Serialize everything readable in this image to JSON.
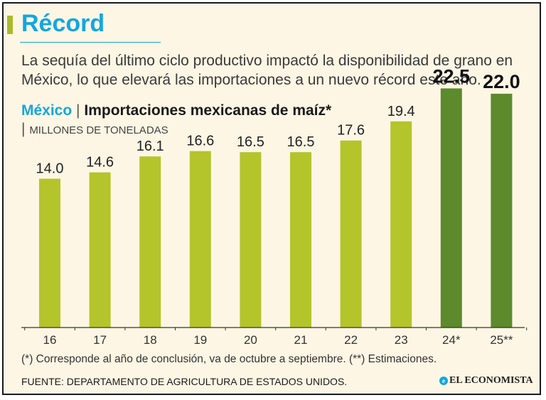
{
  "header": {
    "title": "Récord",
    "subtitle": "La sequía del último ciclo productivo impactó la disponibilidad de grano en México, lo que elevará las importaciones a un nuevo récord este año."
  },
  "chart_header": {
    "country": "México",
    "separator": "|",
    "title": "Importaciones mexicanas de maíz*",
    "unit": "MILLONES DE TONELADAS"
  },
  "chart_data": {
    "type": "bar",
    "title": "Importaciones mexicanas de maíz*",
    "ylabel": "MILLONES DE TONELADAS",
    "xlabel": "",
    "categories": [
      "16",
      "17",
      "18",
      "19",
      "20",
      "21",
      "22",
      "23",
      "24*",
      "25**"
    ],
    "values": [
      14.0,
      14.6,
      16.1,
      16.6,
      16.5,
      16.5,
      17.6,
      19.4,
      22.5,
      22.0
    ],
    "value_labels": [
      "14.0",
      "14.6",
      "16.1",
      "16.6",
      "16.5",
      "16.5",
      "17.6",
      "19.4",
      "22.5",
      "22.0"
    ],
    "highlight": [
      false,
      false,
      false,
      false,
      false,
      false,
      false,
      false,
      true,
      true
    ],
    "ylim": [
      0,
      24
    ],
    "grid": false,
    "colors": {
      "bar": "#b3c52b",
      "highlight": "#5c8a2d",
      "axis": "#333333"
    }
  },
  "footer": {
    "footnote": "(*) Corresponde al año de conclusión, va de octubre a septiembre. (**) Estimaciones.",
    "source": "FUENTE: DEPARTAMENTO DE AGRICULTURA DE ESTADOS UNIDOS.",
    "brand": "EL ECONOMISTA",
    "brand_icon": "e-logo-icon"
  },
  "colors": {
    "accent": "#14a6e0",
    "background": "#fdf6e4",
    "title_mark": "#a9bb2a"
  }
}
